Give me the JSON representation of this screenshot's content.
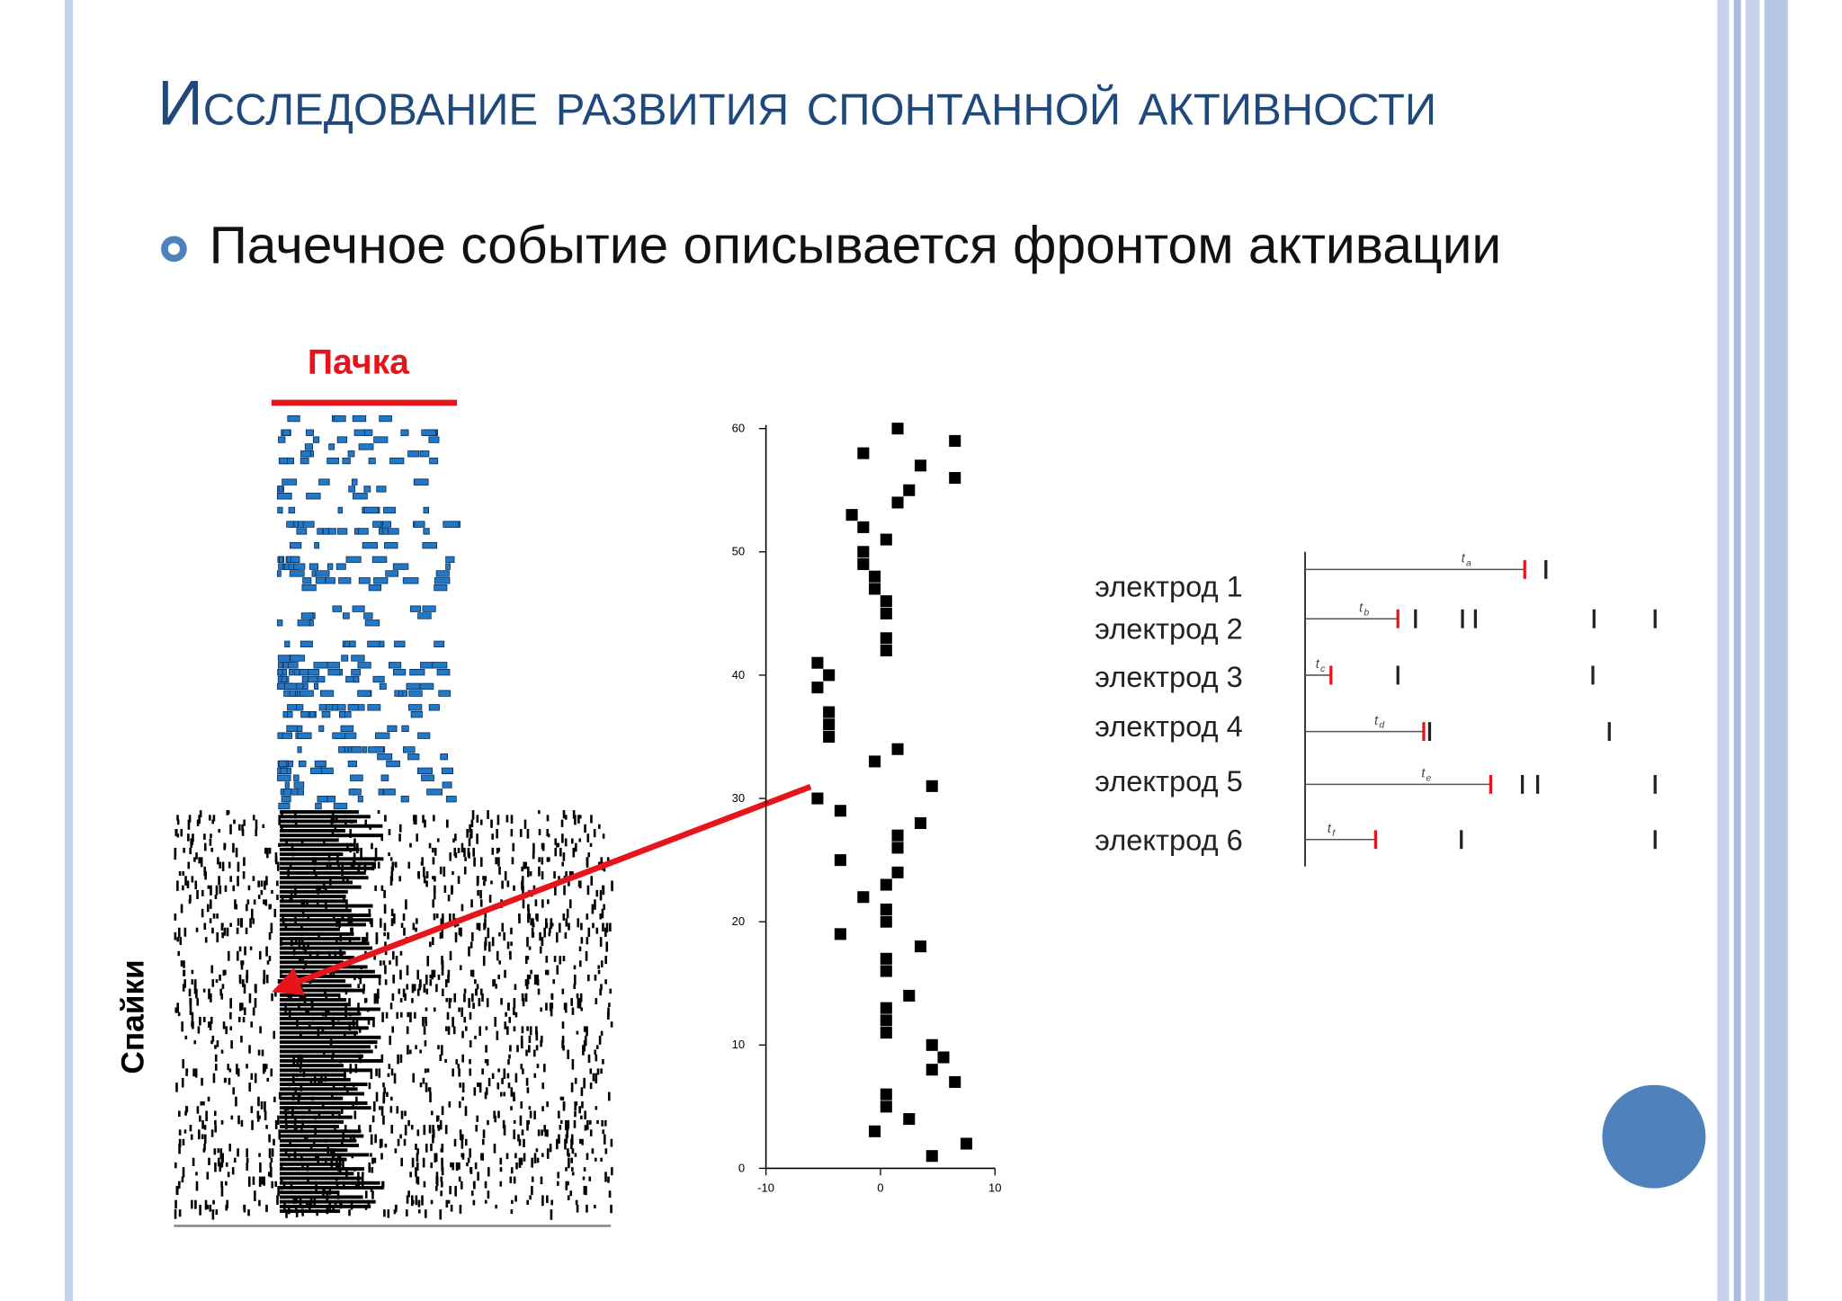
{
  "slide": {
    "title": "Исследование развития спонтанной активности",
    "bullet": "Пачечное событие описывается фронтом активации"
  },
  "raster": {
    "top_label": "Пачка",
    "side_label": "Спайки"
  },
  "chart_data": {
    "type": "scatter",
    "color": "#000000",
    "x": [
      1.5,
      6.5,
      -1.5,
      3.5,
      6.5,
      2.5,
      1.5,
      -2.5,
      -1.5,
      0.5,
      -1.5,
      -1.5,
      -0.5,
      -0.5,
      0.5,
      0.5,
      0.5,
      0.5,
      -5.5,
      -4.5,
      -5.5,
      -4.5,
      -4.5,
      -4.5,
      1.5,
      -0.5,
      4.5,
      -5.5,
      -3.5,
      3.5,
      1.5,
      1.5,
      -3.5,
      1.5,
      0.5,
      -1.5,
      0.5,
      0.5,
      -3.5,
      3.5,
      0.5,
      0.5,
      2.5,
      0.5,
      0.5,
      0.5,
      4.5,
      5.5,
      4.5,
      6.5,
      0.5,
      0.5,
      2.5,
      -0.5,
      7.5,
      4.5
    ],
    "y": [
      60,
      59,
      58,
      57,
      56,
      55,
      54,
      53,
      52,
      51,
      50,
      49,
      48,
      47,
      46,
      45,
      43,
      42,
      41,
      40,
      39,
      37,
      36,
      35,
      34,
      33,
      31,
      30,
      29,
      28,
      27,
      26,
      25,
      24,
      23,
      22,
      21,
      20,
      19,
      18,
      17,
      16,
      14,
      13,
      12,
      11,
      10,
      9,
      8,
      7,
      6,
      5,
      4,
      3,
      2,
      1
    ],
    "xlim": [
      -10,
      10
    ],
    "ylim": [
      0,
      60
    ],
    "xticks": [
      -10,
      0,
      10
    ],
    "yticks": [
      0,
      10,
      20,
      30,
      40,
      50,
      60
    ]
  },
  "electrodes": [
    {
      "label": "электрод 1",
      "time_var": "t",
      "time_sub": "a"
    },
    {
      "label": "электрод 2",
      "time_var": "t",
      "time_sub": "b"
    },
    {
      "label": "электрод 3",
      "time_var": "t",
      "time_sub": "c"
    },
    {
      "label": "электрод 4",
      "time_var": "t",
      "time_sub": "d"
    },
    {
      "label": "электрод 5",
      "time_var": "t",
      "time_sub": "e"
    },
    {
      "label": "электрод 6",
      "time_var": "t",
      "time_sub": "f"
    }
  ]
}
